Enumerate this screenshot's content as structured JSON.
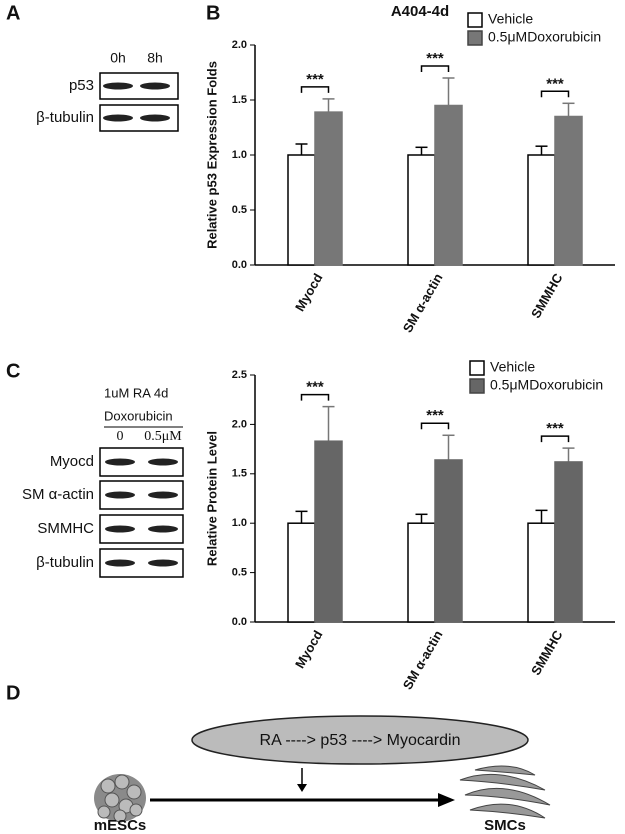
{
  "panels": [
    "A",
    "B",
    "C",
    "D"
  ],
  "blot_a": {
    "lanes": [
      "0h",
      "8h"
    ],
    "rows": [
      "p53",
      "β-tubulin"
    ]
  },
  "blot_c": {
    "header": [
      "1uM RA  4d",
      "Doxorubicin"
    ],
    "lanes": [
      "0",
      "0.5μM"
    ],
    "rows": [
      "Myocd",
      "SM α-actin",
      "SMMHC",
      "β-tubulin"
    ]
  },
  "chart_data": [
    {
      "type": "bar",
      "title": "A404-4d",
      "y_label": "Relative p53 Expression Folds",
      "categories": [
        "Myocd",
        "SM α-actin",
        "SMMHC"
      ],
      "series": [
        {
          "name": "Vehicle",
          "color": "#ffffff",
          "values": [
            1.0,
            1.0,
            1.0
          ],
          "errors": [
            0.1,
            0.07,
            0.08
          ]
        },
        {
          "name": "0.5μMDoxorubicin",
          "color": "#777777",
          "values": [
            1.39,
            1.45,
            1.35
          ],
          "errors": [
            0.12,
            0.25,
            0.12
          ]
        }
      ],
      "annotations": [
        "***",
        "***",
        "***"
      ],
      "ylim": [
        0,
        2.0
      ],
      "yticks": [
        {
          "value": 0,
          "label": "0.0"
        },
        {
          "value": 0.5,
          "label": "0.5"
        },
        {
          "value": 1,
          "label": "1.0"
        },
        {
          "value": 1.5,
          "label": "1.5"
        },
        {
          "value": 2,
          "label": "2.0"
        }
      ]
    },
    {
      "type": "bar",
      "y_label": "Relative Protein Level",
      "categories": [
        "Myocd",
        "SM α-actin",
        "SMMHC"
      ],
      "series": [
        {
          "name": "Vehicle",
          "color": "#ffffff",
          "values": [
            1.0,
            1.0,
            1.0
          ],
          "errors": [
            0.12,
            0.09,
            0.13
          ]
        },
        {
          "name": "0.5μMDoxorubicin",
          "color": "#666666",
          "values": [
            1.83,
            1.64,
            1.62
          ],
          "errors": [
            0.35,
            0.25,
            0.14
          ]
        }
      ],
      "annotations": [
        "***",
        "***",
        "***"
      ],
      "ylim": [
        0,
        2.5
      ],
      "yticks": [
        {
          "value": 0,
          "label": "0.0"
        },
        {
          "value": 0.5,
          "label": "0.5"
        },
        {
          "value": 1,
          "label": "1.0"
        },
        {
          "value": 1.5,
          "label": "1.5"
        },
        {
          "value": 2,
          "label": "2.0"
        },
        {
          "value": 2.5,
          "label": "2.5"
        }
      ]
    }
  ],
  "diagram": {
    "pathway": "RA ----> p53 ----> Myocardin",
    "source": "mESCs",
    "target": "SMCs"
  }
}
